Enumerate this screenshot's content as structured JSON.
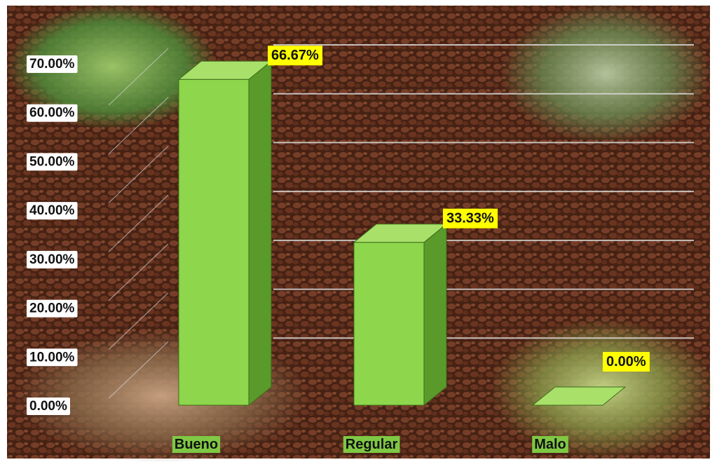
{
  "chart_data": {
    "type": "bar",
    "categories": [
      "Bueno",
      "Regular",
      "Malo"
    ],
    "values": [
      66.67,
      33.33,
      0.0
    ],
    "data_labels": [
      "66.67%",
      "33.33%",
      "0.00%"
    ],
    "y_ticks": [
      "0.00%",
      "10.00%",
      "20.00%",
      "30.00%",
      "40.00%",
      "50.00%",
      "60.00%",
      "70.00%"
    ],
    "ylim": [
      0,
      70
    ],
    "grid": true,
    "style": "3d",
    "title": "",
    "xlabel": "",
    "ylabel": ""
  },
  "colors": {
    "bar_front": "#8ed64c",
    "bar_top": "#a8e06a",
    "bar_side": "#5a9a2a",
    "label_highlight": "#ffff00",
    "category_bg": "#7fc844",
    "tick_bg": "#ffffff",
    "gridline": "#d9d9d9",
    "background": "#5a2e1c"
  },
  "background_photos": [
    "farm-worker-photo",
    "plantation-group-photo",
    "harvest-hands-photo",
    "cacao-pods-photo"
  ]
}
